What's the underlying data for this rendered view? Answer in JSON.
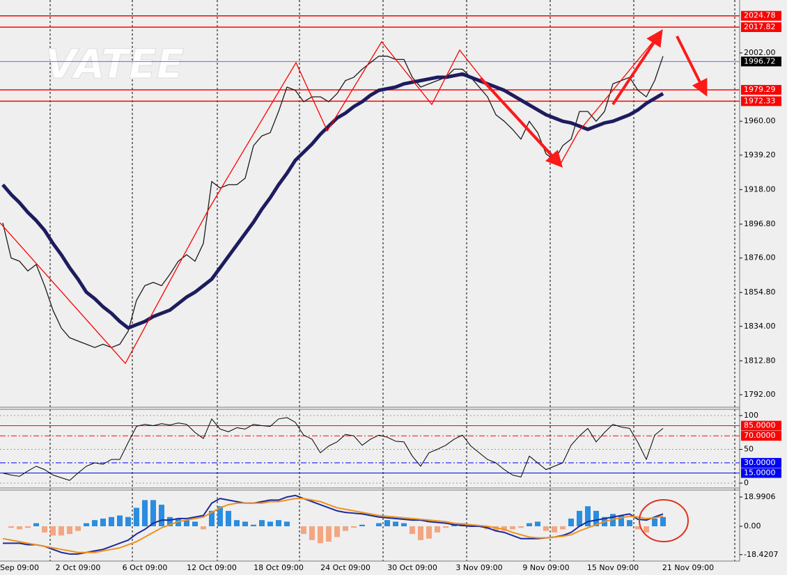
{
  "watermark": "VATEE",
  "chart_data": [
    {
      "type": "line",
      "ylim": [
        1784.3,
        2034.5
      ],
      "yticks": [
        {
          "value": 1792,
          "label": "1792.00"
        },
        {
          "value": 1812.8,
          "label": "1812.80"
        },
        {
          "value": 1834,
          "label": "1834.00"
        },
        {
          "value": 1854.8,
          "label": "1854.80"
        },
        {
          "value": 1876,
          "label": "1876.00"
        },
        {
          "value": 1896.8,
          "label": "1896.80"
        },
        {
          "value": 1918,
          "label": "1918.00"
        },
        {
          "value": 1939.2,
          "label": "1939.20"
        },
        {
          "value": 1960,
          "label": "1960.00"
        },
        {
          "value": 2002,
          "label": "2002.00"
        }
      ],
      "levels": [
        {
          "value": 2024.78,
          "color": "#ff0000"
        },
        {
          "value": 2017.82,
          "color": "#ff0000"
        },
        {
          "value": 1996.72,
          "color": "#4a74e0",
          "box": "#000000"
        },
        {
          "value": 1979.29,
          "color": "#ff0000"
        },
        {
          "value": 1972.33,
          "color": "#ff0000"
        }
      ],
      "series": [
        {
          "type": "line",
          "color": "#1a1a1a",
          "width": 1.3,
          "values": [
            1897.6,
            1876,
            1874,
            1868,
            1872,
            1859,
            1844,
            1833,
            1827,
            1825,
            1823,
            1821,
            1823,
            1821,
            1823,
            1831,
            1850,
            1859,
            1861,
            1859,
            1866,
            1874,
            1878,
            1874,
            1885,
            1923,
            1919,
            1921,
            1921,
            1925,
            1945,
            1951,
            1953,
            1966,
            1981,
            1979,
            1972,
            1975,
            1975,
            1972,
            1977,
            1985,
            1987,
            1992,
            1996,
            2000,
            2000,
            1998,
            1998,
            1987,
            1981,
            1983,
            1985,
            1987,
            1992,
            1992,
            1987,
            1981,
            1975,
            1964,
            1960,
            1955,
            1949,
            1960,
            1953,
            1940,
            1936,
            1945,
            1949,
            1966,
            1966,
            1960,
            1966,
            1983,
            1985,
            1987,
            1979,
            1975,
            1985,
            2000,
            null,
            null,
            null,
            null
          ]
        },
        {
          "type": "line",
          "color": "#1c1c5e",
          "width": 5,
          "values": [
            1921,
            1915,
            1910,
            1904,
            1899,
            1893,
            1885,
            1878,
            1870,
            1863,
            1855,
            1851,
            1846,
            1842,
            1837,
            1833,
            1835,
            1837,
            1840,
            1842,
            1844,
            1848,
            1852,
            1855,
            1859,
            1863,
            1870,
            1877,
            1884,
            1891,
            1898,
            1906,
            1913,
            1921,
            1928,
            1936,
            1941,
            1946,
            1952,
            1957,
            1962,
            1965,
            1969,
            1972,
            1976,
            1979,
            1980,
            1981,
            1983,
            1984,
            1985,
            1986,
            1987,
            1987,
            1988,
            1989,
            1987,
            1985,
            1983,
            1981,
            1979,
            1976,
            1973,
            1970,
            1967,
            1964,
            1962,
            1960,
            1959,
            1957,
            1955,
            1957,
            1959,
            1960,
            1962,
            1964,
            1967,
            1971,
            1974,
            1977,
            null,
            null,
            null,
            null
          ]
        }
      ]
    },
    {
      "type": "line",
      "ylim": [
        -7.2,
        108.2
      ],
      "yticks": [
        100,
        50,
        0
      ],
      "levels": [
        {
          "value": 85,
          "label": "85.0000",
          "color": "#ff0000",
          "style": "solid"
        },
        {
          "value": 70,
          "label": "70.0000",
          "color": "#ff0000",
          "style": "dashdot"
        },
        {
          "value": 30,
          "label": "30.0000",
          "color": "#0000ff",
          "style": "dashdot"
        },
        {
          "value": 15,
          "label": "15.0000",
          "color": "#0000ff",
          "style": "solid"
        }
      ],
      "series": [
        {
          "type": "line",
          "color": "#000000",
          "width": 1,
          "values": [
            15,
            12,
            10,
            18,
            25,
            20,
            12,
            8,
            4,
            15,
            25,
            30,
            28,
            35,
            35,
            60,
            84,
            87,
            85,
            88,
            86,
            89,
            87,
            75,
            66,
            95,
            80,
            76,
            82,
            80,
            87,
            85,
            84,
            95,
            97,
            90,
            71,
            65,
            45,
            55,
            61,
            72,
            70,
            56,
            65,
            71,
            68,
            62,
            61,
            40,
            25,
            45,
            50,
            56,
            65,
            71,
            55,
            45,
            35,
            30,
            20,
            12,
            9,
            40,
            30,
            20,
            25,
            30,
            56,
            70,
            81,
            61,
            75,
            87,
            83,
            81,
            60,
            35,
            71,
            81,
            null,
            null,
            null,
            null
          ]
        }
      ]
    },
    {
      "type": "bar",
      "ylim": [
        -22.6,
        23.5
      ],
      "yticks": [
        18.9906,
        {
          "value": 0,
          "label": "0.00"
        },
        -18.4207
      ],
      "categories": [
        null,
        null,
        "Sep 09:00",
        null,
        null,
        null,
        null,
        null,
        null,
        "2 Oct 09:00",
        null,
        null,
        null,
        null,
        null,
        null,
        null,
        "6 Oct 09:00",
        null,
        null,
        null,
        null,
        null,
        null,
        null,
        "12 Oct 09:00",
        null,
        null,
        null,
        null,
        null,
        null,
        null,
        "18 Oct 09:00",
        null,
        null,
        null,
        null,
        null,
        null,
        null,
        "24 Oct 09:00",
        null,
        null,
        null,
        null,
        null,
        null,
        null,
        "30 Oct 09:00",
        null,
        null,
        null,
        null,
        null,
        null,
        null,
        "3 Nov 09:00",
        null,
        null,
        null,
        null,
        null,
        null,
        null,
        "9 Nov 09:00",
        null,
        null,
        null,
        null,
        null,
        null,
        null,
        "15 Nov 09:00",
        null,
        null,
        null,
        null,
        null,
        null,
        null,
        null,
        "21 Nov 09:00",
        null
      ],
      "series": [
        {
          "type": "bar",
          "color": "#2b8de0",
          "negative_color": "#f4a582",
          "values": [
            0,
            -1,
            -2,
            -1,
            2,
            -4,
            -6,
            -6,
            -5,
            -3,
            2,
            4,
            5,
            6,
            7,
            6,
            12,
            17,
            17,
            14,
            6,
            5,
            4,
            3,
            -2,
            10,
            13,
            10,
            4,
            3,
            1,
            4,
            3,
            4,
            3,
            0,
            -5,
            -9,
            -11,
            -10,
            -7,
            -3,
            -1,
            1,
            0,
            2,
            4,
            3,
            2,
            -5,
            -9,
            -8,
            -4,
            -1,
            1,
            2,
            1,
            0,
            -2,
            -3,
            -3,
            -2,
            -1,
            2,
            3,
            -3,
            -4,
            -2,
            5,
            10,
            13,
            10,
            6,
            8,
            7,
            4,
            -2,
            -4,
            5,
            6,
            null,
            null,
            null,
            null
          ]
        },
        {
          "type": "line",
          "color": "#1a2a9a",
          "width": 2,
          "values": [
            -11,
            -11,
            -11,
            -12,
            -12,
            -13,
            -15,
            -17,
            -18,
            -18,
            -17,
            -16,
            -15,
            -13,
            -11,
            -9,
            -5,
            -2,
            2,
            4,
            4,
            5,
            5,
            6,
            7,
            15,
            18,
            17,
            16,
            15,
            15,
            16,
            17,
            17,
            19,
            20,
            18,
            16,
            14,
            12,
            10,
            9,
            8.5,
            8,
            7,
            6,
            5.5,
            5,
            4.5,
            4,
            4,
            3,
            2.5,
            2,
            1,
            0.5,
            0,
            0,
            -1,
            -3,
            -4,
            -6,
            -8,
            -8,
            -8,
            -7.5,
            -7,
            -6,
            -4,
            0,
            3,
            4,
            5,
            6,
            7,
            8,
            4.5,
            4,
            6,
            8,
            null,
            null,
            null,
            null
          ]
        },
        {
          "type": "line",
          "color": "#f0901e",
          "width": 2,
          "values": [
            -8,
            -9,
            -10,
            -11,
            -12,
            -13,
            -14,
            -15,
            -16,
            -17,
            -17,
            -17,
            -16,
            -15,
            -14,
            -12,
            -10,
            -7,
            -4,
            -1,
            1,
            3,
            4,
            5,
            6,
            9,
            12,
            14,
            15,
            15,
            15,
            15,
            16,
            16,
            17,
            18,
            18,
            17,
            16,
            14,
            12,
            11,
            10,
            9,
            8,
            7,
            6.5,
            6,
            5.5,
            5,
            4.5,
            4,
            3.5,
            3,
            2,
            1.5,
            1,
            0.5,
            0,
            -1,
            -2,
            -4,
            -5.5,
            -7,
            -7.5,
            -7.5,
            -7,
            -6.5,
            -5.5,
            -3,
            -1,
            1,
            3,
            4.5,
            5.5,
            6.5,
            6,
            5,
            5.5,
            6.5,
            null,
            null,
            null,
            null
          ]
        }
      ]
    }
  ]
}
